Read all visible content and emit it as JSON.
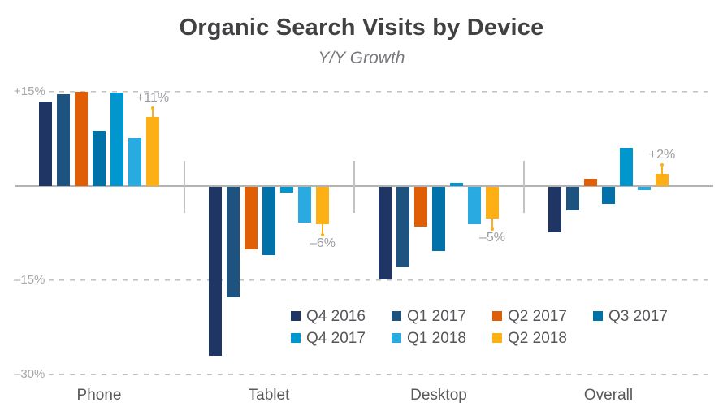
{
  "title": "Organic Search Visits by Device",
  "subtitle": "Y/Y Growth",
  "chart_data": {
    "type": "bar",
    "title": "Organic Search Visits by Device",
    "subtitle": "Y/Y Growth",
    "categories": [
      "Phone",
      "Tablet",
      "Desktop",
      "Overall"
    ],
    "series": [
      {
        "name": "Q4 2016",
        "color": "#1f3664",
        "values": [
          13.5,
          -26.9,
          -14.7,
          -7.2
        ]
      },
      {
        "name": "Q1 2017",
        "color": "#1e527f",
        "values": [
          14.6,
          -17.6,
          -12.8,
          -3.8
        ]
      },
      {
        "name": "Q2 2017",
        "color": "#e05e06",
        "values": [
          15,
          -9.9,
          -6.4,
          1.1
        ]
      },
      {
        "name": "Q3 2017",
        "color": "#0071a9",
        "values": [
          8.8,
          -10.8,
          -10.2,
          -2.7
        ]
      },
      {
        "name": "Q4 2017",
        "color": "#0097cf",
        "values": [
          14.9,
          -0.9,
          0.5,
          6.1
        ]
      },
      {
        "name": "Q1 2018",
        "color": "#29abe2",
        "values": [
          7.6,
          -5.7,
          -5.9,
          -0.5
        ]
      },
      {
        "name": "Q2 2018",
        "color": "#fcb016",
        "values": [
          11,
          -6,
          -5,
          2
        ]
      }
    ],
    "ylim": [
      -30,
      15
    ],
    "yticks": [
      {
        "label": "+15%",
        "value": 15
      },
      {
        "label": "–15%",
        "value": -15
      },
      {
        "label": "–30%",
        "value": -30
      }
    ],
    "grid": "dashed-horizontal",
    "legend_position": "bottom-right",
    "annotations": [
      {
        "category": "Phone",
        "series": "Q2 2018",
        "label": "+11%",
        "value": 11
      },
      {
        "category": "Tablet",
        "series": "Q2 2018",
        "label": "–6%",
        "value": -6
      },
      {
        "category": "Desktop",
        "series": "Q2 2018",
        "label": "–5%",
        "value": -5
      },
      {
        "category": "Overall",
        "series": "Q2 2018",
        "label": "+2%",
        "value": 2
      }
    ],
    "annotation_accent_color": "#fcb016"
  }
}
